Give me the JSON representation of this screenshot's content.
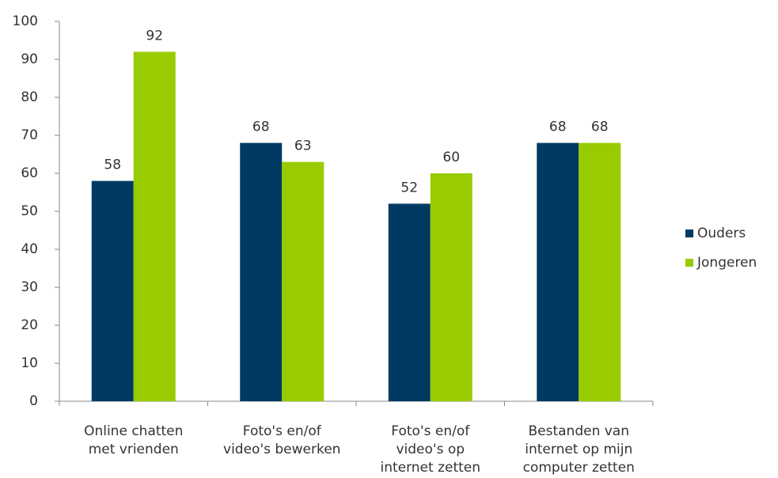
{
  "chart_data": {
    "type": "bar",
    "categories": [
      [
        "Online chatten",
        "met vrienden"
      ],
      [
        "Foto's en/of",
        "video's bewerken"
      ],
      [
        "Foto's en/of",
        "video's op",
        "internet zetten"
      ],
      [
        "Bestanden van",
        "internet op mijn",
        "computer zetten"
      ]
    ],
    "series": [
      {
        "name": "Ouders",
        "color": "#003a63",
        "values": [
          58,
          68,
          52,
          68
        ]
      },
      {
        "name": "Jongeren",
        "color": "#99cc00",
        "values": [
          92,
          63,
          60,
          68
        ]
      }
    ],
    "ylim": [
      0,
      100
    ],
    "yticks": [
      0,
      10,
      20,
      30,
      40,
      50,
      60,
      70,
      80,
      90,
      100
    ],
    "legend": "right"
  }
}
